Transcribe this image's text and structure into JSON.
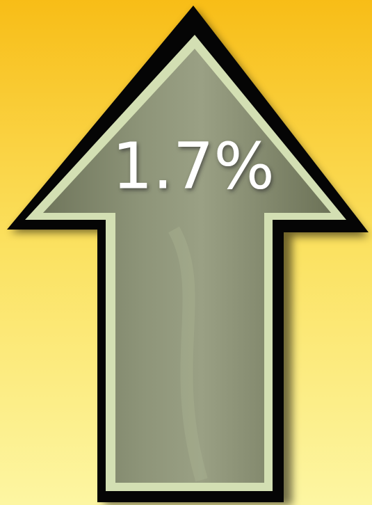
{
  "arrow": {
    "label": "1.7%"
  }
}
